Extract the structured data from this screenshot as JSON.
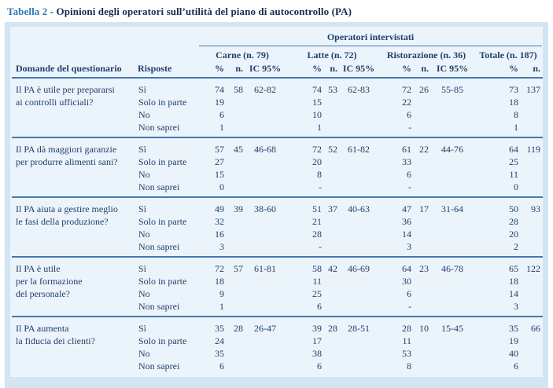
{
  "colors": {
    "caption_accent": "#2f79b8",
    "caption_text": "#152c50",
    "table_frame": "#d3e4f3",
    "table_background": "#ecf4fb",
    "rule_blue": "#4679ae",
    "body_text": "#20406b"
  },
  "caption": {
    "label": "Tabella 2",
    "text": "- Opinioni degli operatori sull’utilità del piano di autocontrollo (PA)"
  },
  "table": {
    "group_header": "Operatori intervistati",
    "columns": {
      "question": "Domande del questionario",
      "risposte": "Risposte",
      "groups": [
        {
          "label": "Carne (n. 79)",
          "sub": [
            "%",
            "n.",
            "IC 95%"
          ]
        },
        {
          "label": "Latte (n. 72)",
          "sub": [
            "%",
            "n.",
            "IC 95%"
          ]
        },
        {
          "label": "Ristorazione (n. 36)",
          "sub": [
            "%",
            "n.",
            "IC 95%"
          ]
        },
        {
          "label": "Totale (n. 187)",
          "sub": [
            "%",
            "n."
          ]
        }
      ]
    },
    "blocks": [
      {
        "question_lines": [
          "Il PA è utile per prepararsi",
          "ai controlli ufficiali?"
        ],
        "rows": [
          {
            "risposta": "Sì",
            "carne": [
              "74",
              "58",
              "62-82"
            ],
            "latte": [
              "74",
              "53",
              "62-83"
            ],
            "ristorazione": [
              "72",
              "26",
              "55-85"
            ],
            "totale": [
              "73",
              "137"
            ]
          },
          {
            "risposta": "Solo in parte",
            "carne": [
              "19",
              "",
              ""
            ],
            "latte": [
              "15",
              "",
              ""
            ],
            "ristorazione": [
              "22",
              "",
              ""
            ],
            "totale": [
              "18",
              ""
            ]
          },
          {
            "risposta": "No",
            "carne": [
              "6",
              "",
              ""
            ],
            "latte": [
              "10",
              "",
              ""
            ],
            "ristorazione": [
              "6",
              "",
              ""
            ],
            "totale": [
              "8",
              ""
            ]
          },
          {
            "risposta": "Non saprei",
            "carne": [
              "1",
              "",
              ""
            ],
            "latte": [
              "1",
              "",
              ""
            ],
            "ristorazione": [
              "-",
              "",
              ""
            ],
            "totale": [
              "1",
              ""
            ]
          }
        ]
      },
      {
        "question_lines": [
          "Il PA dà maggiori garanzie",
          "per produrre alimenti sani?"
        ],
        "rows": [
          {
            "risposta": "Sì",
            "carne": [
              "57",
              "45",
              "46-68"
            ],
            "latte": [
              "72",
              "52",
              "61-82"
            ],
            "ristorazione": [
              "61",
              "22",
              "44-76"
            ],
            "totale": [
              "64",
              "119"
            ]
          },
          {
            "risposta": "Solo in parte",
            "carne": [
              "27",
              "",
              ""
            ],
            "latte": [
              "20",
              "",
              ""
            ],
            "ristorazione": [
              "33",
              "",
              ""
            ],
            "totale": [
              "25",
              ""
            ]
          },
          {
            "risposta": "No",
            "carne": [
              "15",
              "",
              ""
            ],
            "latte": [
              "8",
              "",
              ""
            ],
            "ristorazione": [
              "6",
              "",
              ""
            ],
            "totale": [
              "11",
              ""
            ]
          },
          {
            "risposta": "Non saprei",
            "carne": [
              "0",
              "",
              ""
            ],
            "latte": [
              "-",
              "",
              ""
            ],
            "ristorazione": [
              "-",
              "",
              ""
            ],
            "totale": [
              "0",
              ""
            ]
          }
        ]
      },
      {
        "question_lines": [
          "Il PA aiuta a gestire meglio",
          "le fasi della produzione?"
        ],
        "rows": [
          {
            "risposta": "Sì",
            "carne": [
              "49",
              "39",
              "38-60"
            ],
            "latte": [
              "51",
              "37",
              "40-63"
            ],
            "ristorazione": [
              "47",
              "17",
              "31-64"
            ],
            "totale": [
              "50",
              "93"
            ]
          },
          {
            "risposta": "Solo in parte",
            "carne": [
              "32",
              "",
              ""
            ],
            "latte": [
              "21",
              "",
              ""
            ],
            "ristorazione": [
              "36",
              "",
              ""
            ],
            "totale": [
              "28",
              ""
            ]
          },
          {
            "risposta": "No",
            "carne": [
              "16",
              "",
              ""
            ],
            "latte": [
              "28",
              "",
              ""
            ],
            "ristorazione": [
              "14",
              "",
              ""
            ],
            "totale": [
              "20",
              ""
            ]
          },
          {
            "risposta": "Non saprei",
            "carne": [
              "3",
              "",
              ""
            ],
            "latte": [
              "-",
              "",
              ""
            ],
            "ristorazione": [
              "3",
              "",
              ""
            ],
            "totale": [
              "2",
              ""
            ]
          }
        ]
      },
      {
        "question_lines": [
          "Il PA è utile",
          "per la formazione",
          "del personale?"
        ],
        "rows": [
          {
            "risposta": "Sì",
            "carne": [
              "72",
              "57",
              "61-81"
            ],
            "latte": [
              "58",
              "42",
              "46-69"
            ],
            "ristorazione": [
              "64",
              "23",
              "46-78"
            ],
            "totale": [
              "65",
              "122"
            ]
          },
          {
            "risposta": "Solo in parte",
            "carne": [
              "18",
              "",
              ""
            ],
            "latte": [
              "11",
              "",
              ""
            ],
            "ristorazione": [
              "30",
              "",
              ""
            ],
            "totale": [
              "18",
              ""
            ]
          },
          {
            "risposta": "No",
            "carne": [
              "9",
              "",
              ""
            ],
            "latte": [
              "25",
              "",
              ""
            ],
            "ristorazione": [
              "6",
              "",
              ""
            ],
            "totale": [
              "14",
              ""
            ]
          },
          {
            "risposta": "Non saprei",
            "carne": [
              "1",
              "",
              ""
            ],
            "latte": [
              "6",
              "",
              ""
            ],
            "ristorazione": [
              "-",
              "",
              ""
            ],
            "totale": [
              "3",
              ""
            ]
          }
        ]
      },
      {
        "question_lines": [
          "Il PA aumenta",
          "la fiducia dei clienti?"
        ],
        "rows": [
          {
            "risposta": "Sì",
            "carne": [
              "35",
              "28",
              "26-47"
            ],
            "latte": [
              "39",
              "28",
              "28-51"
            ],
            "ristorazione": [
              "28",
              "10",
              "15-45"
            ],
            "totale": [
              "35",
              "66"
            ]
          },
          {
            "risposta": "Solo in parte",
            "carne": [
              "24",
              "",
              ""
            ],
            "latte": [
              "17",
              "",
              ""
            ],
            "ristorazione": [
              "11",
              "",
              ""
            ],
            "totale": [
              "19",
              ""
            ]
          },
          {
            "risposta": "No",
            "carne": [
              "35",
              "",
              ""
            ],
            "latte": [
              "38",
              "",
              ""
            ],
            "ristorazione": [
              "53",
              "",
              ""
            ],
            "totale": [
              "40",
              ""
            ]
          },
          {
            "risposta": "Non saprei",
            "carne": [
              "6",
              "",
              ""
            ],
            "latte": [
              "6",
              "",
              ""
            ],
            "ristorazione": [
              "8",
              "",
              ""
            ],
            "totale": [
              "6",
              ""
            ]
          }
        ]
      }
    ]
  }
}
